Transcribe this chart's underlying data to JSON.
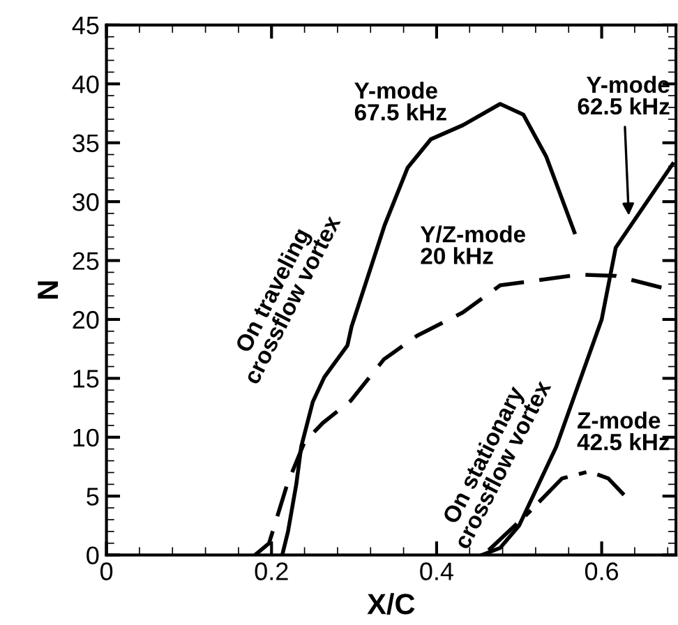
{
  "chart_data": {
    "type": "line",
    "xlabel": "X/C",
    "ylabel": "N",
    "xlim": [
      0,
      0.69
    ],
    "ylim": [
      0,
      45
    ],
    "xticks": [
      0,
      0.2,
      0.4,
      0.6
    ],
    "yticks": [
      0,
      5,
      10,
      15,
      20,
      25,
      30,
      35,
      40,
      45
    ],
    "grid": false,
    "legend": false,
    "marker": "none",
    "series": [
      {
        "color": "#000000",
        "line_style": "solid",
        "x": [
          0.213,
          0.22,
          0.23,
          0.236,
          0.25,
          0.264,
          0.292,
          0.297,
          0.337,
          0.365,
          0.393,
          0.432,
          0.477,
          0.505,
          0.533,
          0.567
        ],
        "values": [
          0,
          2,
          6,
          9.2,
          13,
          15.1,
          17.8,
          19.4,
          28,
          32.9,
          35.3,
          36.5,
          38.3,
          37.4,
          33.8,
          27.4
        ]
      },
      {
        "color": "#000000",
        "line_style": "dashed",
        "x": [
          0.18,
          0.197,
          0.219,
          0.24,
          0.262,
          0.296,
          0.336,
          0.376,
          0.432,
          0.477,
          0.573,
          0.617,
          0.673,
          0.686
        ],
        "values": [
          0,
          1,
          6,
          9.6,
          11.2,
          13.1,
          16.6,
          18.6,
          20.6,
          22.9,
          23.8,
          23.7,
          22.7,
          22.4
        ]
      },
      {
        "color": "#000000",
        "line_style": "solid",
        "x": [
          0.455,
          0.477,
          0.5,
          0.545,
          0.6,
          0.617,
          0.686
        ],
        "values": [
          0,
          0.6,
          2.5,
          9.2,
          20,
          26.1,
          33.2
        ]
      },
      {
        "color": "#000000",
        "line_style": "dashdot",
        "x": [
          0.463,
          0.513,
          0.552,
          0.585,
          0.608,
          0.627
        ],
        "values": [
          0.4,
          3.7,
          6.5,
          7.1,
          6.5,
          5.1
        ]
      }
    ],
    "annotations": [
      "Y-mode\n67.5 kHz",
      {
        "text": "Y-mode\n62.5 kHz",
        "x": 0.633,
        "y": 28.5
      },
      "Y/Z-mode\n20 kHz",
      "Z-mode\n42.5 kHz",
      "On traveling\ncrossflow vortex",
      "On stationary\ncrossflow vortex"
    ]
  }
}
